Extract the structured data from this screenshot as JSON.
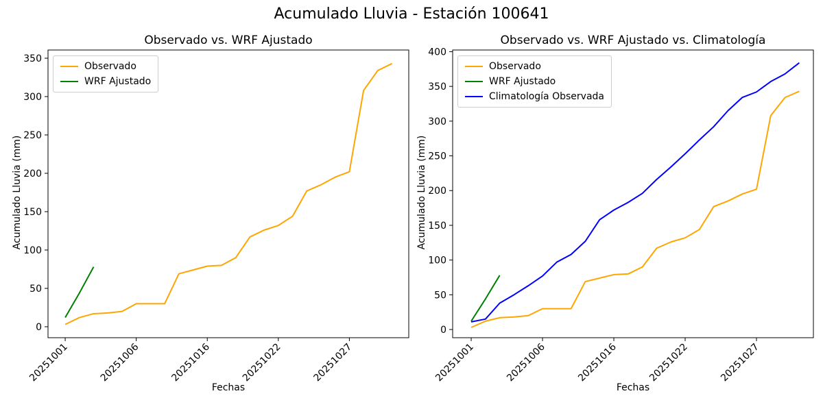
{
  "suptitle": "Acumulado Lluvia - Estación 100641",
  "colors": {
    "observado": "#FFA500",
    "wrf_ajustado": "#008000",
    "climatologia": "#0000FF",
    "spine": "#000000"
  },
  "chart_data": [
    {
      "type": "line",
      "title": "Observado vs. WRF Ajustado",
      "xlabel": "Fechas",
      "ylabel": "Acumulado Lluvia (mm)",
      "ylim": [
        -14.3,
        360.7
      ],
      "xlim": [
        -1.21,
        24.18
      ],
      "yticks": [
        0,
        50,
        100,
        150,
        200,
        250,
        300,
        350
      ],
      "xtick_positions": [
        0,
        5,
        10,
        15,
        20
      ],
      "xtick_labels": [
        "20251001",
        "20251006",
        "20251016",
        "20251022",
        "20251027"
      ],
      "grid": false,
      "legend_position": "upper-left",
      "series": [
        {
          "name": "Observado",
          "color": "#FFA500",
          "y": [
            3,
            12,
            17,
            18,
            20,
            30,
            30,
            30,
            69,
            74,
            79,
            80,
            90,
            117,
            126,
            132,
            144,
            177,
            185,
            195,
            202,
            308,
            334,
            343
          ]
        },
        {
          "name": "WRF Ajustado",
          "color": "#008000",
          "y": [
            12,
            44,
            78
          ]
        }
      ]
    },
    {
      "type": "line",
      "title": "Observado vs. WRF Ajustado vs. Climatología",
      "xlabel": "Fechas",
      "ylabel": "Acumulado Lluvia (mm)",
      "ylim": [
        -11.8,
        402.4
      ],
      "xlim": [
        -1.3,
        23.99
      ],
      "yticks": [
        0,
        50,
        100,
        150,
        200,
        250,
        300,
        350,
        400
      ],
      "xtick_positions": [
        0,
        5,
        10,
        15,
        20
      ],
      "xtick_labels": [
        "20251001",
        "20251006",
        "20251016",
        "20251022",
        "20251027"
      ],
      "grid": false,
      "legend_position": "upper-left",
      "series": [
        {
          "name": "Observado",
          "color": "#FFA500",
          "y": [
            3,
            12,
            17,
            18,
            20,
            30,
            30,
            30,
            69,
            74,
            79,
            80,
            90,
            117,
            126,
            132,
            144,
            177,
            185,
            195,
            202,
            308,
            334,
            343
          ]
        },
        {
          "name": "WRF Ajustado",
          "color": "#008000",
          "y": [
            12,
            44,
            78
          ]
        },
        {
          "name": "Climatología Observada",
          "color": "#0000FF",
          "y": [
            11,
            15,
            38,
            50,
            63,
            77,
            97,
            108,
            127,
            158,
            172,
            183,
            196,
            216,
            234,
            253,
            273,
            292,
            315,
            334,
            342,
            357,
            368,
            384
          ]
        }
      ]
    }
  ]
}
